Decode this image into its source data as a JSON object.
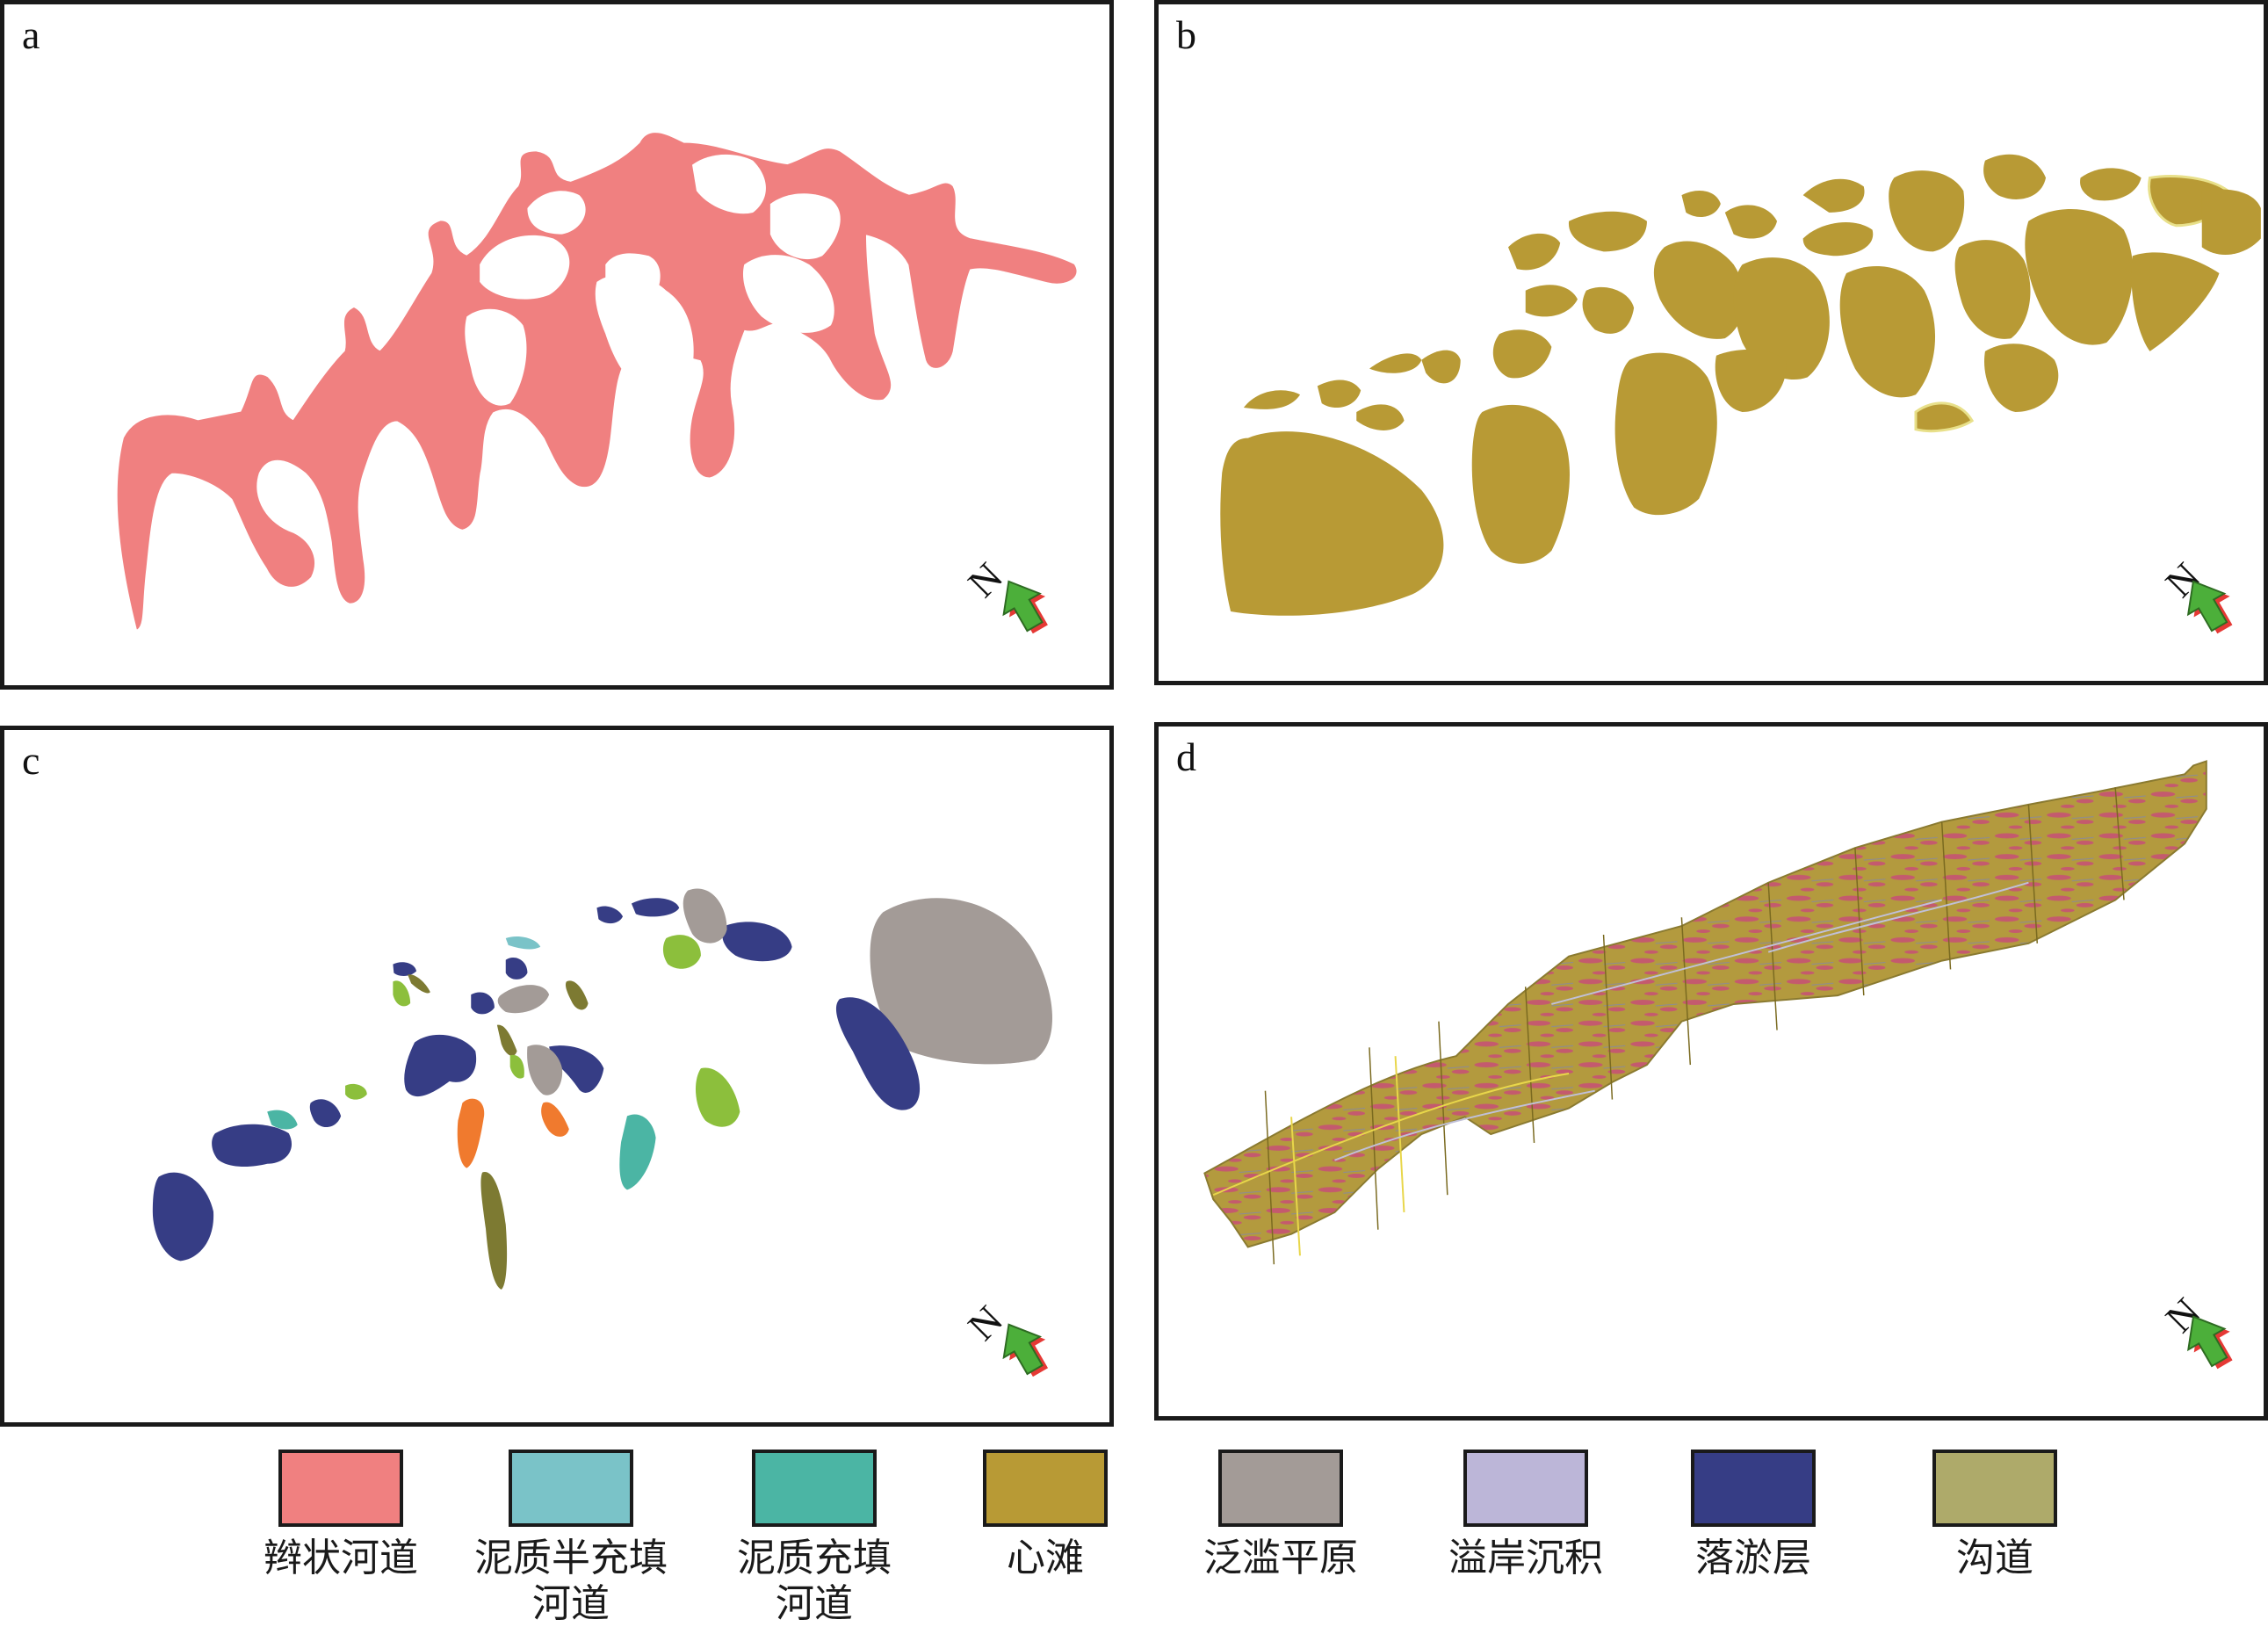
{
  "panels": [
    {
      "id": "a",
      "label": "a"
    },
    {
      "id": "b",
      "label": "b"
    },
    {
      "id": "c",
      "label": "c"
    },
    {
      "id": "d",
      "label": "d"
    }
  ],
  "compass": {
    "label": "N",
    "arrow_color": "#4caf3a",
    "arrow_shadow": "#e53935"
  },
  "legend": [
    {
      "label": "辫状河道",
      "color": "#f08080"
    },
    {
      "label": "泥质半充填\n河道",
      "color": "#7ac3c8"
    },
    {
      "label": "泥质充填\n河道",
      "color": "#4bb5a4"
    },
    {
      "label": "心滩",
      "color": "#b89a35"
    },
    {
      "label": "泛滥平原",
      "color": "#a39b97"
    },
    {
      "label": "溢岸沉积",
      "color": "#bcb6d8"
    },
    {
      "label": "落淤层",
      "color": "#363d85"
    },
    {
      "label": "沟道",
      "color": "#aeaa6a"
    }
  ],
  "colors": {
    "braided_channel": "#f08080",
    "mid_channel_bar": "#b89a35",
    "mud_half_filled": "#7ac3c8",
    "mud_filled": "#4bb5a4",
    "floodplain": "#a39b97",
    "overbank": "#bcb6d8",
    "silt_layer": "#363d85",
    "gully": "#7d7a32",
    "gully_light": "#8cbf3c",
    "orange": "#f07a2e",
    "model_base": "#b39a3e",
    "model_pink": "#c45a6e"
  }
}
